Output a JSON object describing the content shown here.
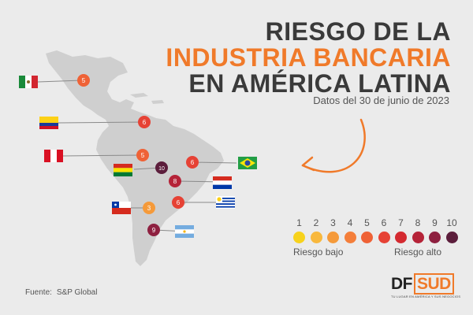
{
  "title": {
    "line1": "RIESGO DE LA",
    "line2": "INDUSTRIA BANCARIA",
    "line3": "EN AMÉRICA LATINA",
    "subtitle": "Datos del 30 de junio de 2023"
  },
  "colors": {
    "accent": "#f07a2a",
    "dark_text": "#3a3a3a",
    "background": "#ebebeb",
    "map": "#cfcfcf"
  },
  "scale": {
    "levels": [
      {
        "label": "1",
        "color": "#f7d21c"
      },
      {
        "label": "2",
        "color": "#f8b83d"
      },
      {
        "label": "3",
        "color": "#f59a3a"
      },
      {
        "label": "4",
        "color": "#f47e3a"
      },
      {
        "label": "5",
        "color": "#ef6236"
      },
      {
        "label": "6",
        "color": "#e64235"
      },
      {
        "label": "7",
        "color": "#d42a30"
      },
      {
        "label": "8",
        "color": "#b52338"
      },
      {
        "label": "9",
        "color": "#8e2040"
      },
      {
        "label": "10",
        "color": "#5c1e3c"
      }
    ],
    "low_label": "Riesgo bajo",
    "high_label": "Riesgo alto"
  },
  "countries": [
    {
      "flag": "mexico-flag",
      "risk": "5"
    },
    {
      "flag": "colombia-flag",
      "risk": "6"
    },
    {
      "flag": "peru-flag",
      "risk": "5"
    },
    {
      "flag": "bolivia-flag",
      "risk": "10"
    },
    {
      "flag": "brazil-flag",
      "risk": "6"
    },
    {
      "flag": "paraguay-flag",
      "risk": "8"
    },
    {
      "flag": "chile-flag",
      "risk": "3"
    },
    {
      "flag": "uruguay-flag",
      "risk": "6"
    },
    {
      "flag": "argentina-flag",
      "risk": "9"
    }
  ],
  "source": {
    "label": "Fuente:",
    "value": "S&P Global"
  },
  "logo": {
    "df": "DF",
    "sud": "SUD",
    "tagline": "TU LUGAR EN AMÉRICA Y SUS NEGOCIOS"
  }
}
